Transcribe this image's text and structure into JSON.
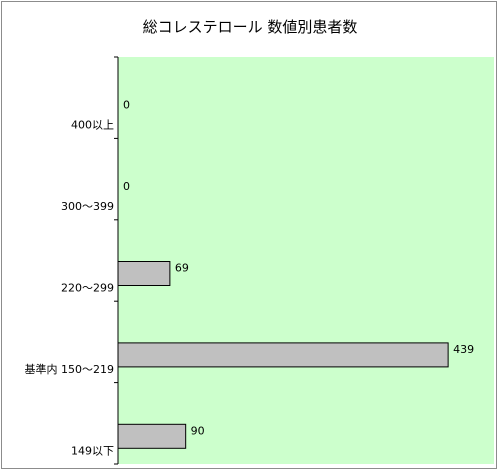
{
  "chart_data": {
    "type": "bar",
    "orientation": "horizontal",
    "title": "総コレステロール 数値別患者数",
    "categories": [
      "400以上",
      "300～399",
      "220～299",
      "基準内 150～219",
      "149以下"
    ],
    "values": [
      0,
      0,
      69,
      439,
      90
    ],
    "data_labels": [
      "0",
      "0",
      "69",
      "439",
      "90"
    ],
    "xlim": [
      0,
      500
    ],
    "grid": false,
    "legend": "none",
    "colors": {
      "plot_background": "#ccffcc",
      "bar_fill": "#c0c0c0",
      "bar_stroke": "#000000"
    }
  }
}
